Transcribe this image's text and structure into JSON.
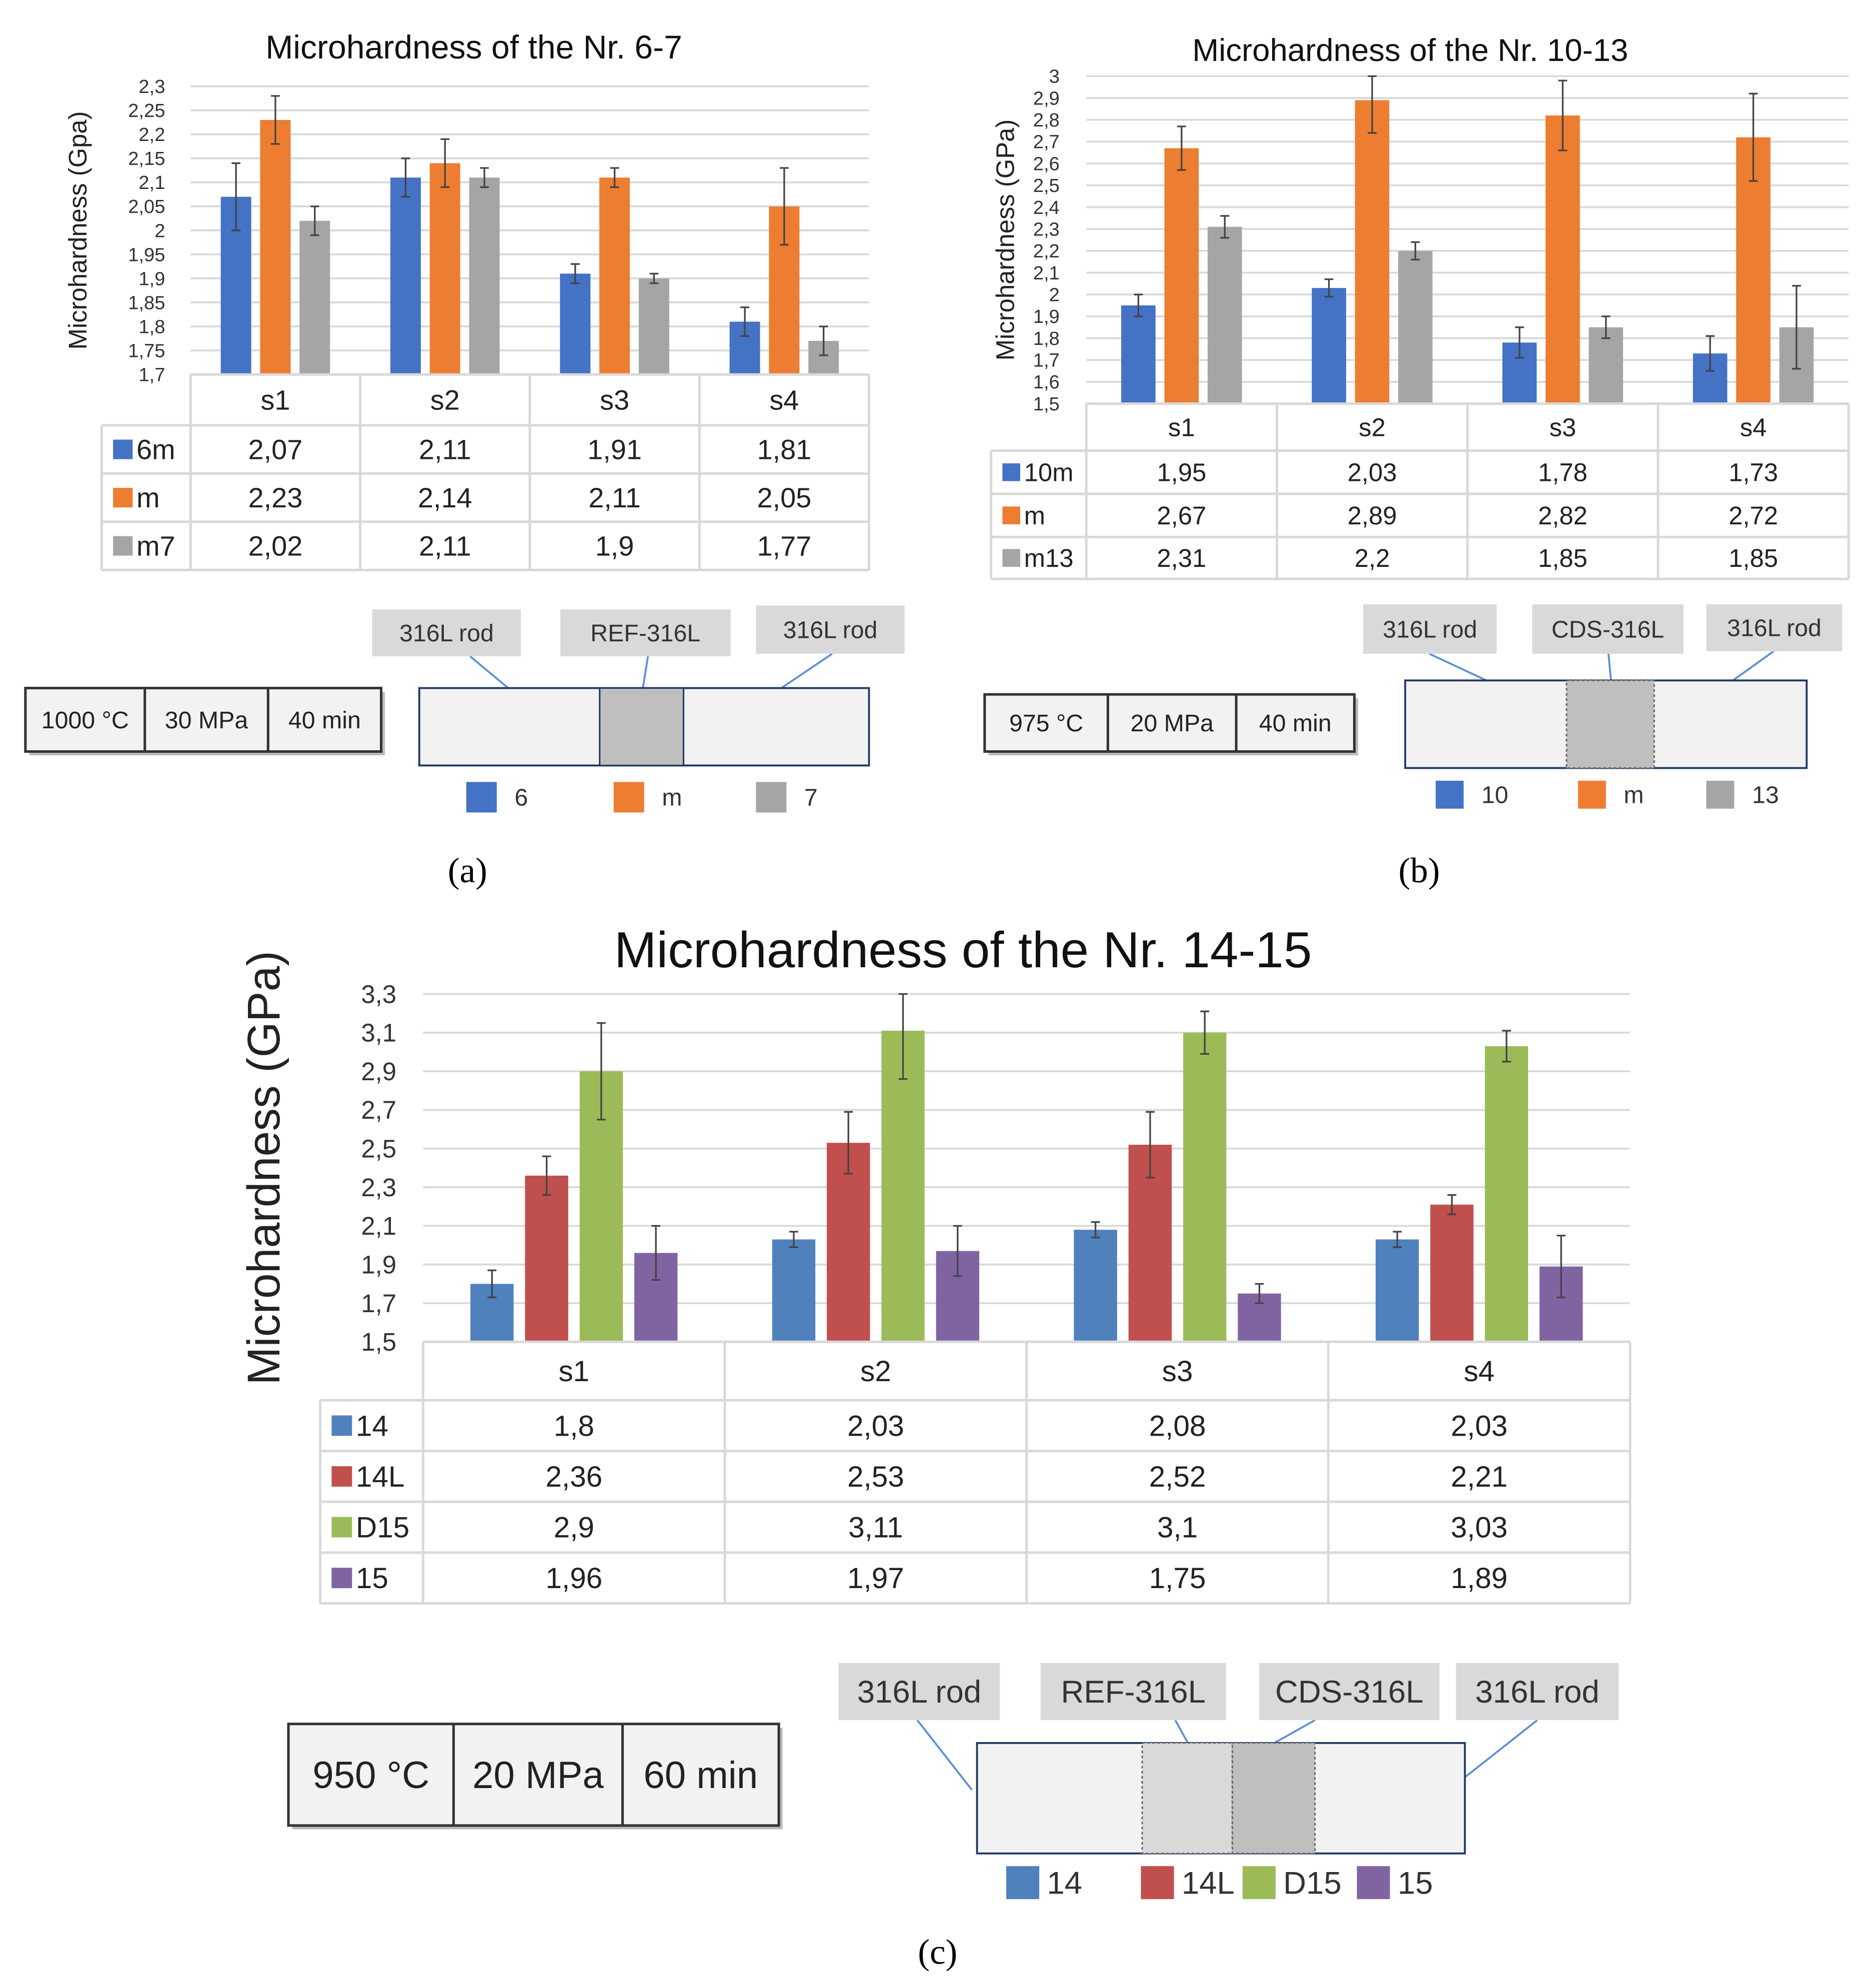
{
  "chart_data": [
    {
      "type": "bar",
      "title": "Microhardness of the Nr. 6-7",
      "ylabel": "Microhardness (Gpa)",
      "xlabel": "",
      "ylim": [
        1.7,
        2.3
      ],
      "yticks": [
        1.7,
        1.75,
        1.8,
        1.85,
        1.9,
        1.95,
        2,
        2.05,
        2.1,
        2.15,
        2.2,
        2.25,
        2.3
      ],
      "ytick_labels": [
        "1,7",
        "1,75",
        "1,8",
        "1,85",
        "1,9",
        "1,95",
        "2",
        "2,05",
        "2,1",
        "2,15",
        "2,2",
        "2,25",
        "2,3"
      ],
      "grid": true,
      "legend": "data-table",
      "categories": [
        "s1",
        "s2",
        "s3",
        "s4"
      ],
      "series": [
        {
          "name": "6m",
          "color": "#4472C4",
          "values": [
            2.07,
            2.11,
            1.91,
            1.81
          ],
          "errors": [
            0.07,
            0.04,
            0.02,
            0.03
          ],
          "labels": [
            "2,07",
            "2,11",
            "1,91",
            "1,81"
          ]
        },
        {
          "name": "m",
          "color": "#ED7D31",
          "values": [
            2.23,
            2.14,
            2.11,
            2.05
          ],
          "errors": [
            0.05,
            0.05,
            0.02,
            0.08
          ],
          "labels": [
            "2,23",
            "2,14",
            "2,11",
            "2,05"
          ]
        },
        {
          "name": "m7",
          "color": "#A5A5A5",
          "values": [
            2.02,
            2.11,
            1.9,
            1.77
          ],
          "errors": [
            0.03,
            0.02,
            0.01,
            0.03
          ],
          "labels": [
            "2,02",
            "2,11",
            "1,9",
            "1,77"
          ]
        }
      ]
    },
    {
      "type": "bar",
      "title": "Microhardness of the Nr. 10-13",
      "ylabel": "Microhardness (GPa)",
      "xlabel": "",
      "ylim": [
        1.5,
        3
      ],
      "yticks": [
        1.5,
        1.6,
        1.7,
        1.8,
        1.9,
        2,
        2.1,
        2.2,
        2.3,
        2.4,
        2.5,
        2.6,
        2.7,
        2.8,
        2.9,
        3
      ],
      "ytick_labels": [
        "1,5",
        "1,6",
        "1,7",
        "1,8",
        "1,9",
        "2",
        "2,1",
        "2,2",
        "2,3",
        "2,4",
        "2,5",
        "2,6",
        "2,7",
        "2,8",
        "2,9",
        "3"
      ],
      "grid": true,
      "legend": "data-table",
      "categories": [
        "s1",
        "s2",
        "s3",
        "s4"
      ],
      "series": [
        {
          "name": "10m",
          "color": "#4472C4",
          "values": [
            1.95,
            2.03,
            1.78,
            1.73
          ],
          "errors": [
            0.05,
            0.04,
            0.07,
            0.08
          ],
          "labels": [
            "1,95",
            "2,03",
            "1,78",
            "1,73"
          ]
        },
        {
          "name": "m",
          "color": "#ED7D31",
          "values": [
            2.67,
            2.89,
            2.82,
            2.72
          ],
          "errors": [
            0.1,
            0.15,
            0.16,
            0.2
          ],
          "labels": [
            "2,67",
            "2,89",
            "2,82",
            "2,72"
          ]
        },
        {
          "name": "m13",
          "color": "#A5A5A5",
          "values": [
            2.31,
            2.2,
            1.85,
            1.85
          ],
          "errors": [
            0.05,
            0.04,
            0.05,
            0.19
          ],
          "labels": [
            "2,31",
            "2,2",
            "1,85",
            "1,85"
          ]
        }
      ]
    },
    {
      "type": "bar",
      "title": "Microhardness of the Nr. 14-15",
      "ylabel": "Microhardness (GPa)",
      "xlabel": "",
      "ylim": [
        1.5,
        3.3
      ],
      "yticks": [
        1.5,
        1.7,
        1.9,
        2.1,
        2.3,
        2.5,
        2.7,
        2.9,
        3.1,
        3.3
      ],
      "ytick_labels": [
        "1,5",
        "1,7",
        "1,9",
        "2,1",
        "2,3",
        "2,5",
        "2,7",
        "2,9",
        "3,1",
        "3,3"
      ],
      "grid": true,
      "legend": "data-table",
      "categories": [
        "s1",
        "s2",
        "s3",
        "s4"
      ],
      "series": [
        {
          "name": "14",
          "color": "#4F81BD",
          "values": [
            1.8,
            2.03,
            2.08,
            2.03
          ],
          "errors": [
            0.07,
            0.04,
            0.04,
            0.04
          ],
          "labels": [
            "1,8",
            "2,03",
            "2,08",
            "2,03"
          ]
        },
        {
          "name": "14L",
          "color": "#C0504D",
          "values": [
            2.36,
            2.53,
            2.52,
            2.21
          ],
          "errors": [
            0.1,
            0.16,
            0.17,
            0.05
          ],
          "labels": [
            "2,36",
            "2,53",
            "2,52",
            "2,21"
          ]
        },
        {
          "name": "D15",
          "color": "#9BBB59",
          "values": [
            2.9,
            3.11,
            3.1,
            3.03
          ],
          "errors": [
            0.25,
            0.25,
            0.11,
            0.08
          ],
          "labels": [
            "2,9",
            "3,11",
            "3,1",
            "3,03"
          ]
        },
        {
          "name": "15",
          "color": "#8064A2",
          "values": [
            1.96,
            1.97,
            1.75,
            1.89
          ],
          "errors": [
            0.14,
            0.13,
            0.05,
            0.16
          ],
          "labels": [
            "1,96",
            "1,97",
            "1,75",
            "1,89"
          ]
        }
      ]
    }
  ],
  "diagrams": [
    {
      "params": [
        "1000 °C",
        "30 MPa",
        "40 min"
      ],
      "labels": [
        "316L rod",
        "REF-316L",
        "316L rod"
      ],
      "legend": [
        "6",
        "m",
        "7"
      ],
      "legend_colors": [
        "#4472C4",
        "#ED7D31",
        "#A5A5A5"
      ],
      "caption": "(a)"
    },
    {
      "params": [
        "975 °C",
        "20 MPa",
        "40 min"
      ],
      "labels": [
        "316L rod",
        "CDS-316L",
        "316L rod"
      ],
      "legend": [
        "10",
        "m",
        "13"
      ],
      "legend_colors": [
        "#4472C4",
        "#ED7D31",
        "#A5A5A5"
      ],
      "caption": "(b)"
    },
    {
      "params": [
        "950 °C",
        "20 MPa",
        "60 min"
      ],
      "labels": [
        "316L rod",
        "REF-316L",
        "CDS-316L",
        "316L rod"
      ],
      "legend": [
        "14",
        "14L",
        "D15",
        "15"
      ],
      "legend_colors": [
        "#4F81BD",
        "#C0504D",
        "#9BBB59",
        "#8064A2"
      ],
      "caption": "(c)"
    }
  ]
}
